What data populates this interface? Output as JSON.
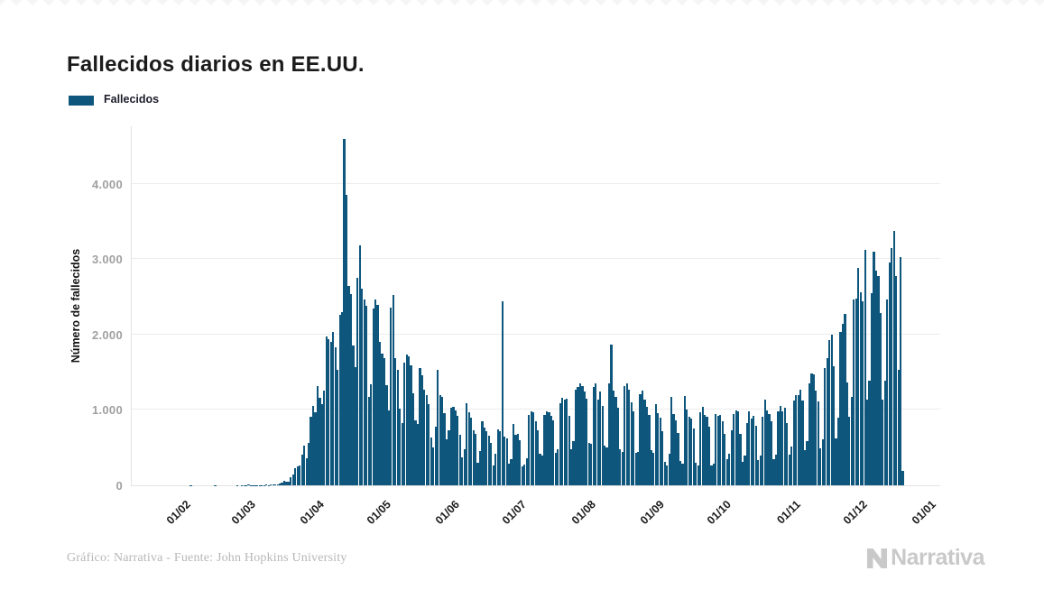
{
  "header": {
    "title": "Fallecidos diarios en EE.UU."
  },
  "legend": {
    "label": "Fallecidos",
    "swatch_color": "#0f567d"
  },
  "footer": {
    "credit": "Gráfico: Narrativa - Fuente: John Hopkins University",
    "brand_text": "Narrativa"
  },
  "icons": {
    "brand_mark": "narrativa-n"
  },
  "colors": {
    "bar": "#0f567d",
    "grid": "#ececec",
    "axis": "#e2e2e2",
    "tick_text": "#a0a0a0",
    "muted_text": "#b7b7b7",
    "brand": "#c9c9c9"
  },
  "chart_data": {
    "type": "bar",
    "title": "Fallecidos diarios en EE.UU.",
    "series_name": "Fallecidos",
    "xlabel": "",
    "ylabel": "Número de fallecidos",
    "grid": "horizontal",
    "legend_position": "top-left",
    "bar_color": "#0f567d",
    "ylim": [
      0,
      4760
    ],
    "y_ticks": [
      0,
      1000,
      2000,
      3000,
      4000
    ],
    "y_tick_labels": [
      "0",
      "1.000",
      "2.000",
      "3.000",
      "4.000"
    ],
    "x_tick_labels": [
      "01/02",
      "01/03",
      "01/04",
      "01/05",
      "01/06",
      "01/07",
      "01/08",
      "01/09",
      "01/10",
      "01/11",
      "01/12",
      "01/01"
    ],
    "x_tick_day_offsets": [
      0,
      29,
      60,
      90,
      121,
      151,
      182,
      213,
      243,
      274,
      304,
      335
    ],
    "start_date": "2020-02-01",
    "end_date": "2020-12-22",
    "values": [
      0,
      0,
      0,
      0,
      0,
      1,
      0,
      0,
      0,
      0,
      0,
      0,
      0,
      0,
      0,
      0,
      1,
      0,
      0,
      0,
      0,
      0,
      0,
      0,
      0,
      0,
      1,
      0,
      1,
      1,
      5,
      7,
      3,
      2,
      4,
      4,
      4,
      5,
      6,
      9,
      5,
      10,
      10,
      11,
      18,
      23,
      41,
      57,
      49,
      46,
      111,
      140,
      225,
      247,
      268,
      411,
      525,
      363,
      558,
      912,
      1049,
      968,
      1321,
      1165,
      1078,
      1255,
      1970,
      1940,
      1900,
      2035,
      1830,
      1528,
      2260,
      2299,
      4591,
      3857,
      2644,
      2539,
      1856,
      1561,
      2748,
      3179,
      2611,
      2458,
      2385,
      1172,
      1343,
      2350,
      2459,
      2390,
      1897,
      1744,
      1691,
      1324,
      998,
      2353,
      2528,
      1687,
      1534,
      1013,
      820,
      1630,
      1739,
      1715,
      1595,
      1218,
      865,
      808,
      1552,
      1461,
      1263,
      1199,
      1072,
      638,
      500,
      774,
      1535,
      1199,
      1175,
      960,
      605,
      730,
      1031,
      1045,
      994,
      921,
      669,
      373,
      476,
      1093,
      972,
      902,
      726,
      684,
      300,
      459,
      854,
      767,
      722,
      661,
      560,
      267,
      424,
      744,
      722,
      2437,
      648,
      617,
      285,
      351,
      818,
      665,
      683,
      596,
      247,
      276,
      356,
      933,
      982,
      963,
      853,
      732,
      420,
      397,
      939,
      977,
      969,
      922,
      862,
      432,
      476,
      1088,
      1159,
      1132,
      1148,
      918,
      478,
      592,
      1271,
      1309,
      1351,
      1321,
      1244,
      1147,
      563,
      551,
      1303,
      1352,
      1135,
      1240,
      1047,
      531,
      506,
      1357,
      1868,
      1252,
      1176,
      1031,
      473,
      445,
      1313,
      1356,
      1263,
      1105,
      980,
      425,
      441,
      1211,
      1258,
      1132,
      1035,
      931,
      463,
      427,
      1077,
      961,
      903,
      717,
      311,
      268,
      422,
      1177,
      940,
      862,
      691,
      328,
      293,
      1187,
      1002,
      914,
      891,
      758,
      300,
      268,
      972,
      1042,
      936,
      906,
      781,
      269,
      287,
      941,
      925,
      936,
      848,
      684,
      348,
      420,
      732,
      949,
      987,
      981,
      687,
      308,
      391,
      821,
      985,
      880,
      916,
      787,
      340,
      391,
      911,
      1135,
      989,
      943,
      845,
      349,
      409,
      985,
      1055,
      976,
      1030,
      827,
      405,
      510,
      1130,
      1191,
      1200,
      1266,
      1125,
      466,
      590,
      1347,
      1479,
      1477,
      1261,
      1108,
      487,
      608,
      1550,
      1685,
      1922,
      1998,
      1581,
      624,
      896,
      2034,
      2146,
      2273,
      1364,
      905,
      1172,
      2461,
      2473,
      2879,
      2563,
      2445,
      3124,
      1138,
      1389,
      2546,
      3103,
      2850,
      2771,
      2286,
      1135,
      1389,
      2460,
      2957,
      3150,
      3370,
      2771,
      1530,
      3030,
      190
    ]
  }
}
